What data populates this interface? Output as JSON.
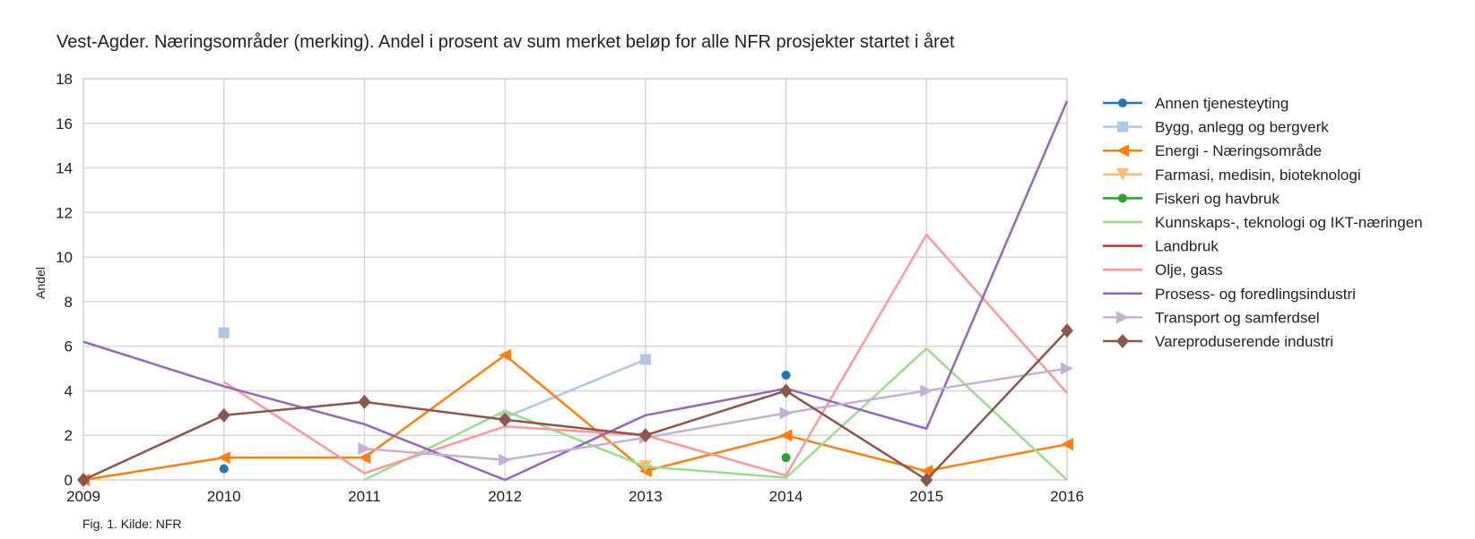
{
  "chart_data": {
    "type": "line",
    "title": "Vest-Agder. Næringsområder (merking). Andel i prosent av sum merket beløp for alle NFR prosjekter startet i året",
    "caption": "Fig. 1. Kilde: NFR",
    "xlabel": "",
    "ylabel": "Andel",
    "x": [
      2009,
      2010,
      2011,
      2012,
      2013,
      2014,
      2015,
      2016
    ],
    "xlim": [
      2009,
      2016
    ],
    "ylim": [
      0,
      18
    ],
    "yticks": [
      0,
      2,
      4,
      6,
      8,
      10,
      12,
      14,
      16,
      18
    ],
    "grid": true,
    "legend_position": "right",
    "series": [
      {
        "name": "Annen tjenesteyting",
        "color": "#1f77b4",
        "marker": "circle",
        "values": [
          null,
          0.5,
          null,
          null,
          null,
          4.7,
          null,
          null
        ]
      },
      {
        "name": "Bygg, anlegg og bergverk",
        "color": "#aec7e8",
        "marker": "square",
        "values": [
          null,
          6.6,
          null,
          2.8,
          5.4,
          null,
          null,
          null
        ]
      },
      {
        "name": "Energi - Næringsområde",
        "color": "#ff7f0e",
        "marker": "triangle-left",
        "values": [
          0,
          1.0,
          1.0,
          5.6,
          0.4,
          2.0,
          0.4,
          1.6
        ]
      },
      {
        "name": "Farmasi, medisin, bioteknologi",
        "color": "#ffbb78",
        "marker": "triangle-down",
        "values": [
          null,
          null,
          null,
          null,
          0.6,
          null,
          null,
          null
        ]
      },
      {
        "name": "Fiskeri og havbruk",
        "color": "#2ca02c",
        "marker": "circle-small",
        "values": [
          null,
          null,
          null,
          null,
          null,
          1.0,
          null,
          null
        ]
      },
      {
        "name": "Kunnskaps-, teknologi og IKT-næringen",
        "color": "#98df8a",
        "marker": "none",
        "values": [
          null,
          null,
          0,
          3.1,
          0.6,
          0.1,
          5.9,
          0
        ]
      },
      {
        "name": "Landbruk",
        "color": "#d62728",
        "marker": "none",
        "values": [
          null,
          null,
          null,
          null,
          null,
          null,
          null,
          null
        ]
      },
      {
        "name": "Olje, gass",
        "color": "#ff9896",
        "marker": "none",
        "values": [
          null,
          4.4,
          0.3,
          2.4,
          2.0,
          0.2,
          11.0,
          3.9
        ]
      },
      {
        "name": "Prosess- og foredlingsindustri",
        "color": "#9467bd",
        "marker": "none",
        "values": [
          6.2,
          4.2,
          2.5,
          0,
          2.9,
          4.1,
          2.3,
          17.0
        ]
      },
      {
        "name": "Transport og samferdsel",
        "color": "#c5b0d5",
        "marker": "triangle-right",
        "values": [
          null,
          null,
          1.4,
          0.9,
          1.9,
          3.0,
          4.0,
          5.0
        ]
      },
      {
        "name": "Vareproduserende industri",
        "color": "#8c564b",
        "marker": "diamond",
        "values": [
          0,
          2.9,
          3.5,
          2.7,
          2.0,
          4.0,
          0,
          6.7
        ]
      }
    ]
  }
}
